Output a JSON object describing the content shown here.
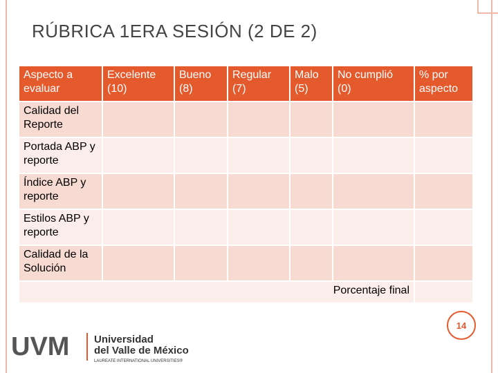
{
  "header": {
    "title": "RÚBRICA 1ERA SESIÓN (2 DE 2)"
  },
  "table": {
    "columns": [
      "Aspecto a evaluar",
      "Excelente (10)",
      "Bueno (8)",
      "Regular (7)",
      "Malo (5)",
      "No cumplió (0)",
      "% por aspecto"
    ],
    "rows": [
      "Calidad del Reporte",
      "Portada ABP y reporte",
      "Índice ABP y reporte",
      "Estilos ABP y reporte",
      "Calidad de la Solución"
    ],
    "total_label": "Porcentaje final"
  },
  "footer": {
    "page": "14",
    "logo_mark": "UVM",
    "logo_line1": "Universidad",
    "logo_line2": "del Valle de México",
    "logo_tagline": "LAUREATE INTERNATIONAL UNIVERSITIES®"
  }
}
